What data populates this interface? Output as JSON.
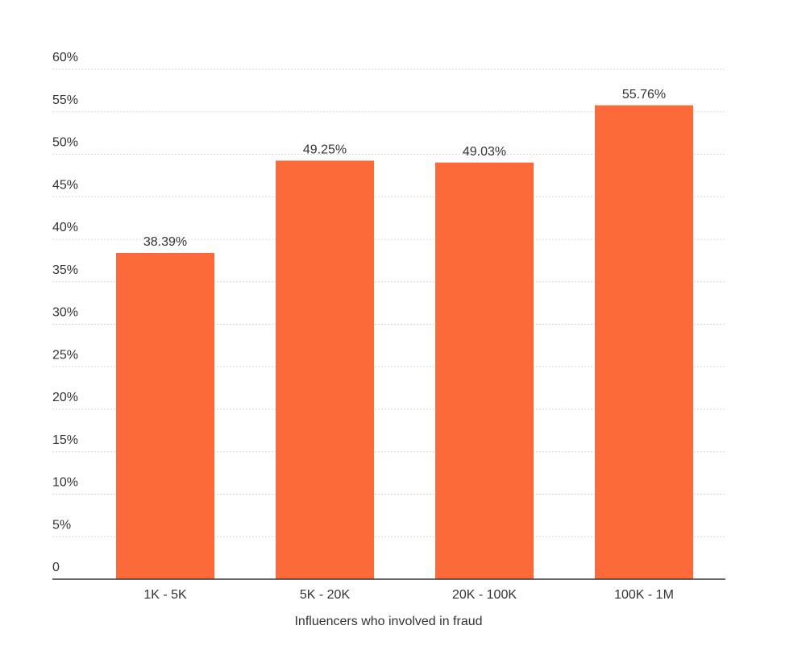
{
  "chart_data": {
    "type": "bar",
    "x_label": "Influencers who involved in fraud",
    "categories": [
      "1K - 5K",
      "5K - 20K",
      "20K - 100K",
      "100K - 1M"
    ],
    "values": [
      38.39,
      49.25,
      49.03,
      55.76
    ],
    "value_labels": [
      "38.39%",
      "49.25%",
      "49.03%",
      "55.76%"
    ],
    "color": "#fd6a3a",
    "ylim": [
      0,
      60
    ],
    "yticks": [
      0,
      {
        "value": 5,
        "label": "5%"
      },
      {
        "value": 10,
        "label": "10%"
      },
      {
        "value": 15,
        "label": "15%"
      },
      {
        "value": 20,
        "label": "20%"
      },
      {
        "value": 25,
        "label": "25%"
      },
      {
        "value": 30,
        "label": "30%"
      },
      {
        "value": 35,
        "label": "35%"
      },
      {
        "value": 40,
        "label": "40%"
      },
      {
        "value": 45,
        "label": "45%"
      },
      {
        "value": 50,
        "label": "50%"
      },
      {
        "value": 55,
        "label": "55%"
      },
      {
        "value": 60,
        "label": "60%"
      }
    ],
    "grid": true
  }
}
